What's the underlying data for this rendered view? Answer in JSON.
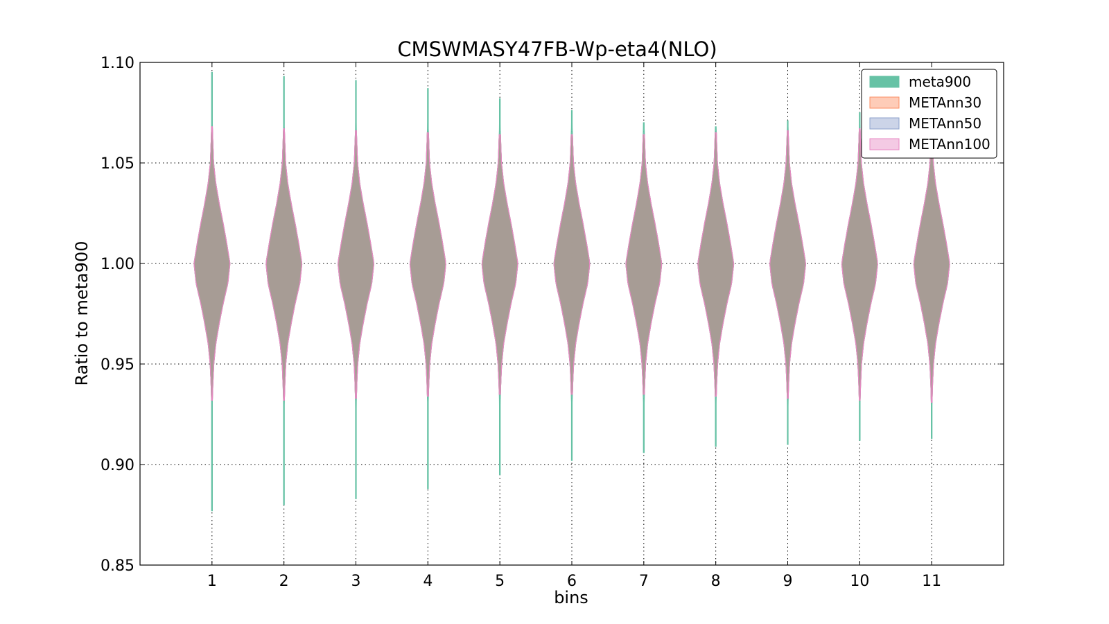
{
  "chart_data": {
    "type": "violin",
    "title": "CMSWMASY47FB-Wp-eta4(NLO)",
    "xlabel": "bins",
    "ylabel": "Ratio to meta900",
    "ylim": [
      0.85,
      1.1
    ],
    "xlim": [
      0,
      12
    ],
    "yticks": [
      0.85,
      0.9,
      0.95,
      1.0,
      1.05,
      1.1
    ],
    "ytick_labels": [
      "0.85",
      "0.90",
      "0.95",
      "1.00",
      "1.05",
      "1.10"
    ],
    "categories": [
      "1",
      "2",
      "3",
      "4",
      "5",
      "6",
      "7",
      "8",
      "9",
      "10",
      "11"
    ],
    "grid": true,
    "legend_position": "top-right",
    "series": [
      {
        "name": "meta900",
        "fill": "#66c2a5",
        "edge": "#66c2a5",
        "min": [
          0.877,
          0.88,
          0.883,
          0.888,
          0.895,
          0.902,
          0.906,
          0.909,
          0.91,
          0.912,
          0.913
        ],
        "max": [
          1.095,
          1.093,
          1.091,
          1.087,
          1.082,
          1.076,
          1.07,
          1.068,
          1.071,
          1.075,
          1.078
        ],
        "half_width_max": [
          0.25,
          0.25,
          0.25,
          0.25,
          0.25,
          0.25,
          0.25,
          0.25,
          0.25,
          0.25,
          0.25
        ],
        "shape": {
          "y": [
            -0.069,
            -0.06,
            -0.05,
            -0.04,
            -0.03,
            -0.02,
            -0.01,
            0.0,
            0.01,
            0.02,
            0.03,
            0.04,
            0.05,
            0.06,
            0.068
          ],
          "w": [
            0.02,
            0.05,
            0.1,
            0.21,
            0.4,
            0.62,
            0.88,
            1.0,
            0.82,
            0.62,
            0.4,
            0.21,
            0.09,
            0.05,
            0.02
          ]
        }
      },
      {
        "name": "METAnn30",
        "fill": "#fc8d62",
        "edge": "#fc8d62",
        "min": [
          0.932,
          0.932,
          0.933,
          0.934,
          0.935,
          0.935,
          0.935,
          0.934,
          0.933,
          0.932,
          0.931
        ],
        "max": [
          1.068,
          1.067,
          1.066,
          1.065,
          1.064,
          1.064,
          1.064,
          1.065,
          1.066,
          1.067,
          1.068
        ]
      },
      {
        "name": "METAnn50",
        "fill": "#8da0cb",
        "edge": "#8da0cb",
        "min": [
          0.932,
          0.932,
          0.933,
          0.934,
          0.935,
          0.935,
          0.935,
          0.934,
          0.933,
          0.932,
          0.931
        ],
        "max": [
          1.068,
          1.067,
          1.066,
          1.065,
          1.064,
          1.064,
          1.064,
          1.065,
          1.066,
          1.067,
          1.068
        ]
      },
      {
        "name": "METAnn100",
        "fill": "#e78ac3",
        "edge": "#e78ac3",
        "min": [
          0.932,
          0.932,
          0.933,
          0.934,
          0.935,
          0.935,
          0.935,
          0.934,
          0.933,
          0.932,
          0.931
        ],
        "max": [
          1.068,
          1.067,
          1.066,
          1.065,
          1.064,
          1.064,
          1.064,
          1.065,
          1.066,
          1.067,
          1.068
        ]
      }
    ],
    "overlap_color": "#a89c93"
  }
}
